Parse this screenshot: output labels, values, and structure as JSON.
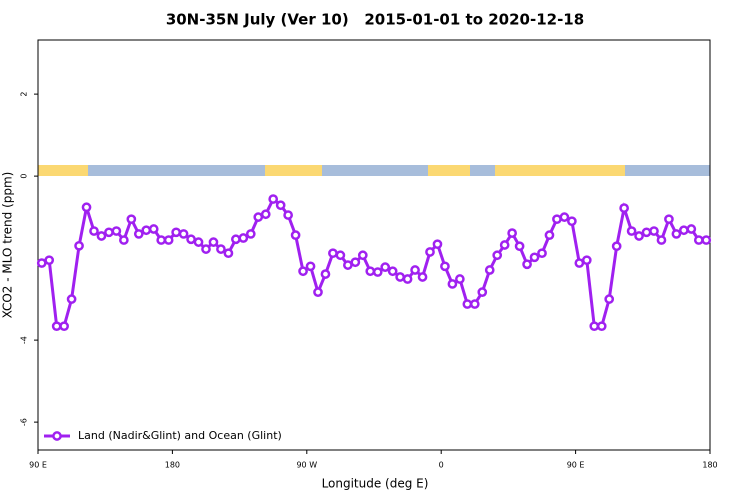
{
  "chart_data": {
    "type": "line",
    "title": "30N-35N July (Ver 10)   2015-01-01 to 2020-12-18",
    "xlabel": "Longitude (deg E)",
    "ylabel": "XCO2 - MLO trend (ppm)",
    "xlim": [
      90,
      540
    ],
    "ylim": [
      -6.68,
      3.32
    ],
    "xticks": [
      {
        "value": 90,
        "label": "90 E"
      },
      180,
      {
        "value": 270,
        "label": "90 W"
      },
      {
        "value": 360,
        "label": "0"
      },
      {
        "value": 450,
        "label": "90 E"
      },
      {
        "value": 540,
        "label": "180"
      }
    ],
    "yticks": [
      -6,
      -4,
      0,
      2
    ],
    "legend": "bottom-left",
    "series": [
      {
        "name": "Land (Nadir&Glint) and Ocean (Glint)",
        "color": "#a020f0",
        "x": [
          92.5,
          97.5,
          102.5,
          107.5,
          112.5,
          117.5,
          122.5,
          127.5,
          132.5,
          137.5,
          142.5,
          147.5,
          152.5,
          157.5,
          162.5,
          167.5,
          172.5,
          177.5,
          182.5,
          187.5,
          192.5,
          197.5,
          202.5,
          207.5,
          212.5,
          217.5,
          222.5,
          227.5,
          232.5,
          237.5,
          242.5,
          247.5,
          252.5,
          257.5,
          262.5,
          267.5,
          272.5,
          277.5,
          282.5,
          287.5,
          292.5,
          297.5,
          302.5,
          307.5,
          312.5,
          317.5,
          322.5,
          327.5,
          332.5,
          337.5,
          342.5,
          347.5,
          352.5,
          357.5,
          362.5,
          367.5,
          372.5,
          377.5,
          382.5,
          387.5,
          392.5,
          397.5,
          402.5,
          407.5,
          412.5,
          417.5,
          422.5,
          427.5,
          432.5,
          437.5,
          442.5,
          447.5,
          452.5,
          457.5,
          462.5,
          467.5,
          472.5,
          477.5,
          482.5,
          487.5,
          492.5,
          497.5,
          502.5,
          507.5,
          512.5,
          517.5,
          522.5,
          527.5,
          532.5,
          537.5
        ],
        "values": [
          -2.12,
          -2.05,
          -3.66,
          -3.66,
          -3.0,
          -1.7,
          -0.76,
          -1.34,
          -1.46,
          -1.37,
          -1.34,
          -1.56,
          -1.05,
          -1.41,
          -1.32,
          -1.29,
          -1.56,
          -1.56,
          -1.37,
          -1.41,
          -1.54,
          -1.61,
          -1.78,
          -1.61,
          -1.78,
          -1.88,
          -1.54,
          -1.51,
          -1.41,
          -1.0,
          -0.93,
          -0.56,
          -0.71,
          -0.95,
          -1.44,
          -2.32,
          -2.2,
          -2.83,
          -2.39,
          -1.88,
          -1.93,
          -2.17,
          -2.1,
          -1.93,
          -2.32,
          -2.34,
          -2.22,
          -2.32,
          -2.46,
          -2.51,
          -2.29,
          -2.46,
          -1.85,
          -1.66,
          -2.2,
          -2.63,
          -2.51,
          -3.12,
          -3.12,
          -2.83,
          -2.29,
          -1.93,
          -1.68,
          -1.39,
          -1.71,
          -2.15,
          -1.98,
          -1.88,
          -1.44,
          -1.05,
          -1.0,
          -1.1,
          -2.12,
          -2.05,
          -3.66,
          -3.66,
          -3.0,
          -1.71,
          -0.78,
          -1.34,
          -1.46,
          -1.37,
          -1.34,
          -1.56,
          -1.05,
          -1.41,
          -1.32,
          -1.29,
          -1.56,
          -1.56
        ]
      }
    ]
  }
}
